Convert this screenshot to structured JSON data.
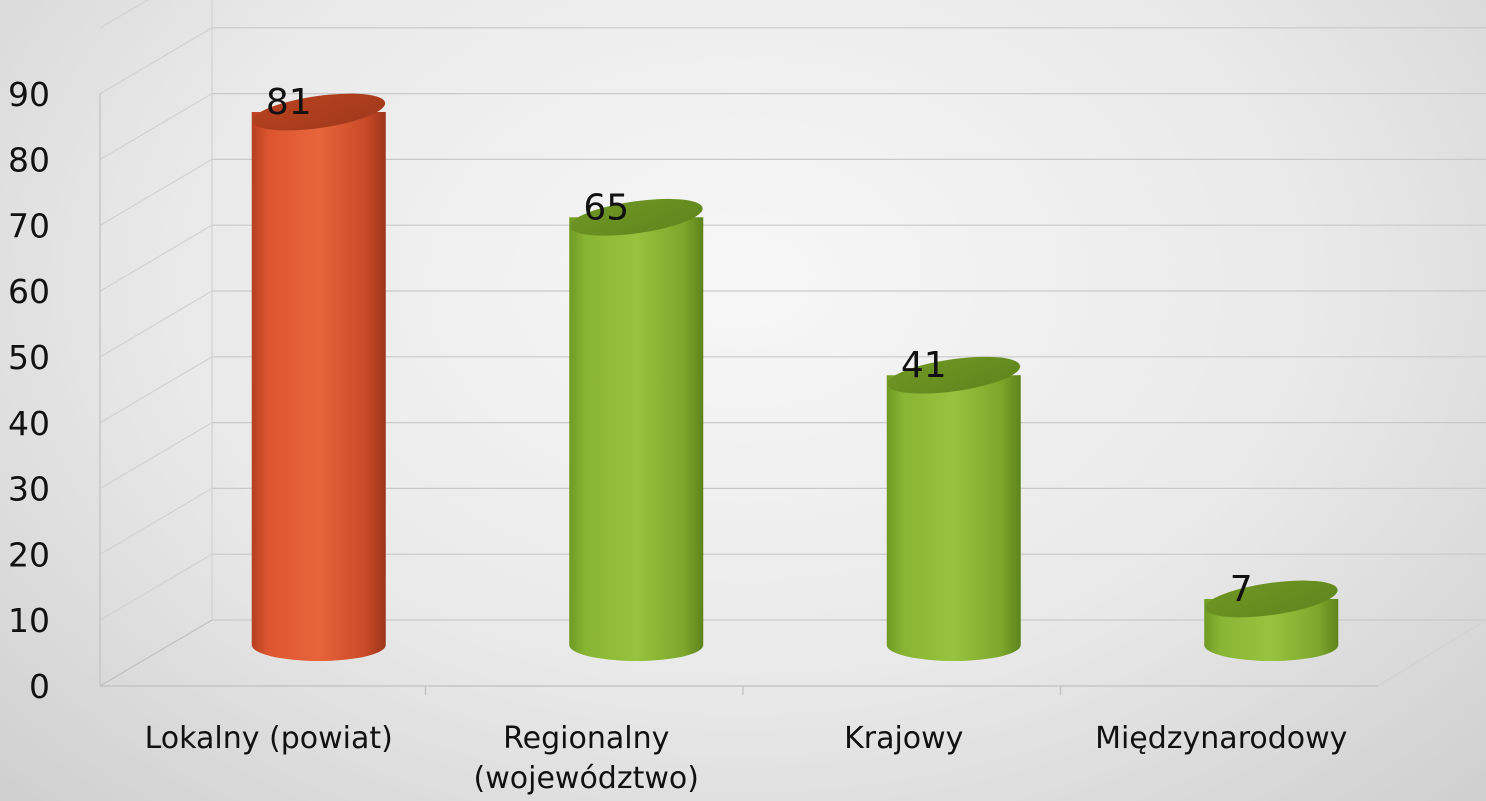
{
  "chart_data": {
    "type": "bar",
    "categories": [
      "Lokalny (powiat)",
      "Regionalny (województwo)",
      "Krajowy",
      "Międzynarodowy"
    ],
    "category_lines": [
      [
        "Lokalny (powiat)"
      ],
      [
        "Regionalny",
        "(województwo)"
      ],
      [
        "Krajowy"
      ],
      [
        "Międzynarodowy"
      ]
    ],
    "values": [
      81,
      65,
      41,
      7
    ],
    "data_labels": [
      "81",
      "65",
      "41",
      "7"
    ],
    "ylim": [
      0,
      90
    ],
    "yticks": [
      0,
      10,
      20,
      30,
      40,
      50,
      60,
      70,
      80,
      90
    ],
    "ytick_labels": [
      "0",
      "10",
      "20",
      "30",
      "40",
      "50",
      "60",
      "70",
      "80",
      "90"
    ],
    "title": "",
    "xlabel": "",
    "ylabel": "",
    "grid": true,
    "legend": "none",
    "style": "3d-cylinder",
    "colors": {
      "highlight_bar": "#e05a33",
      "other_bars": "#8cba38",
      "gridlines": "#c9c9c9"
    },
    "bar_colors": [
      "#e05a33",
      "#8cba38",
      "#8cba38",
      "#8cba38"
    ]
  }
}
